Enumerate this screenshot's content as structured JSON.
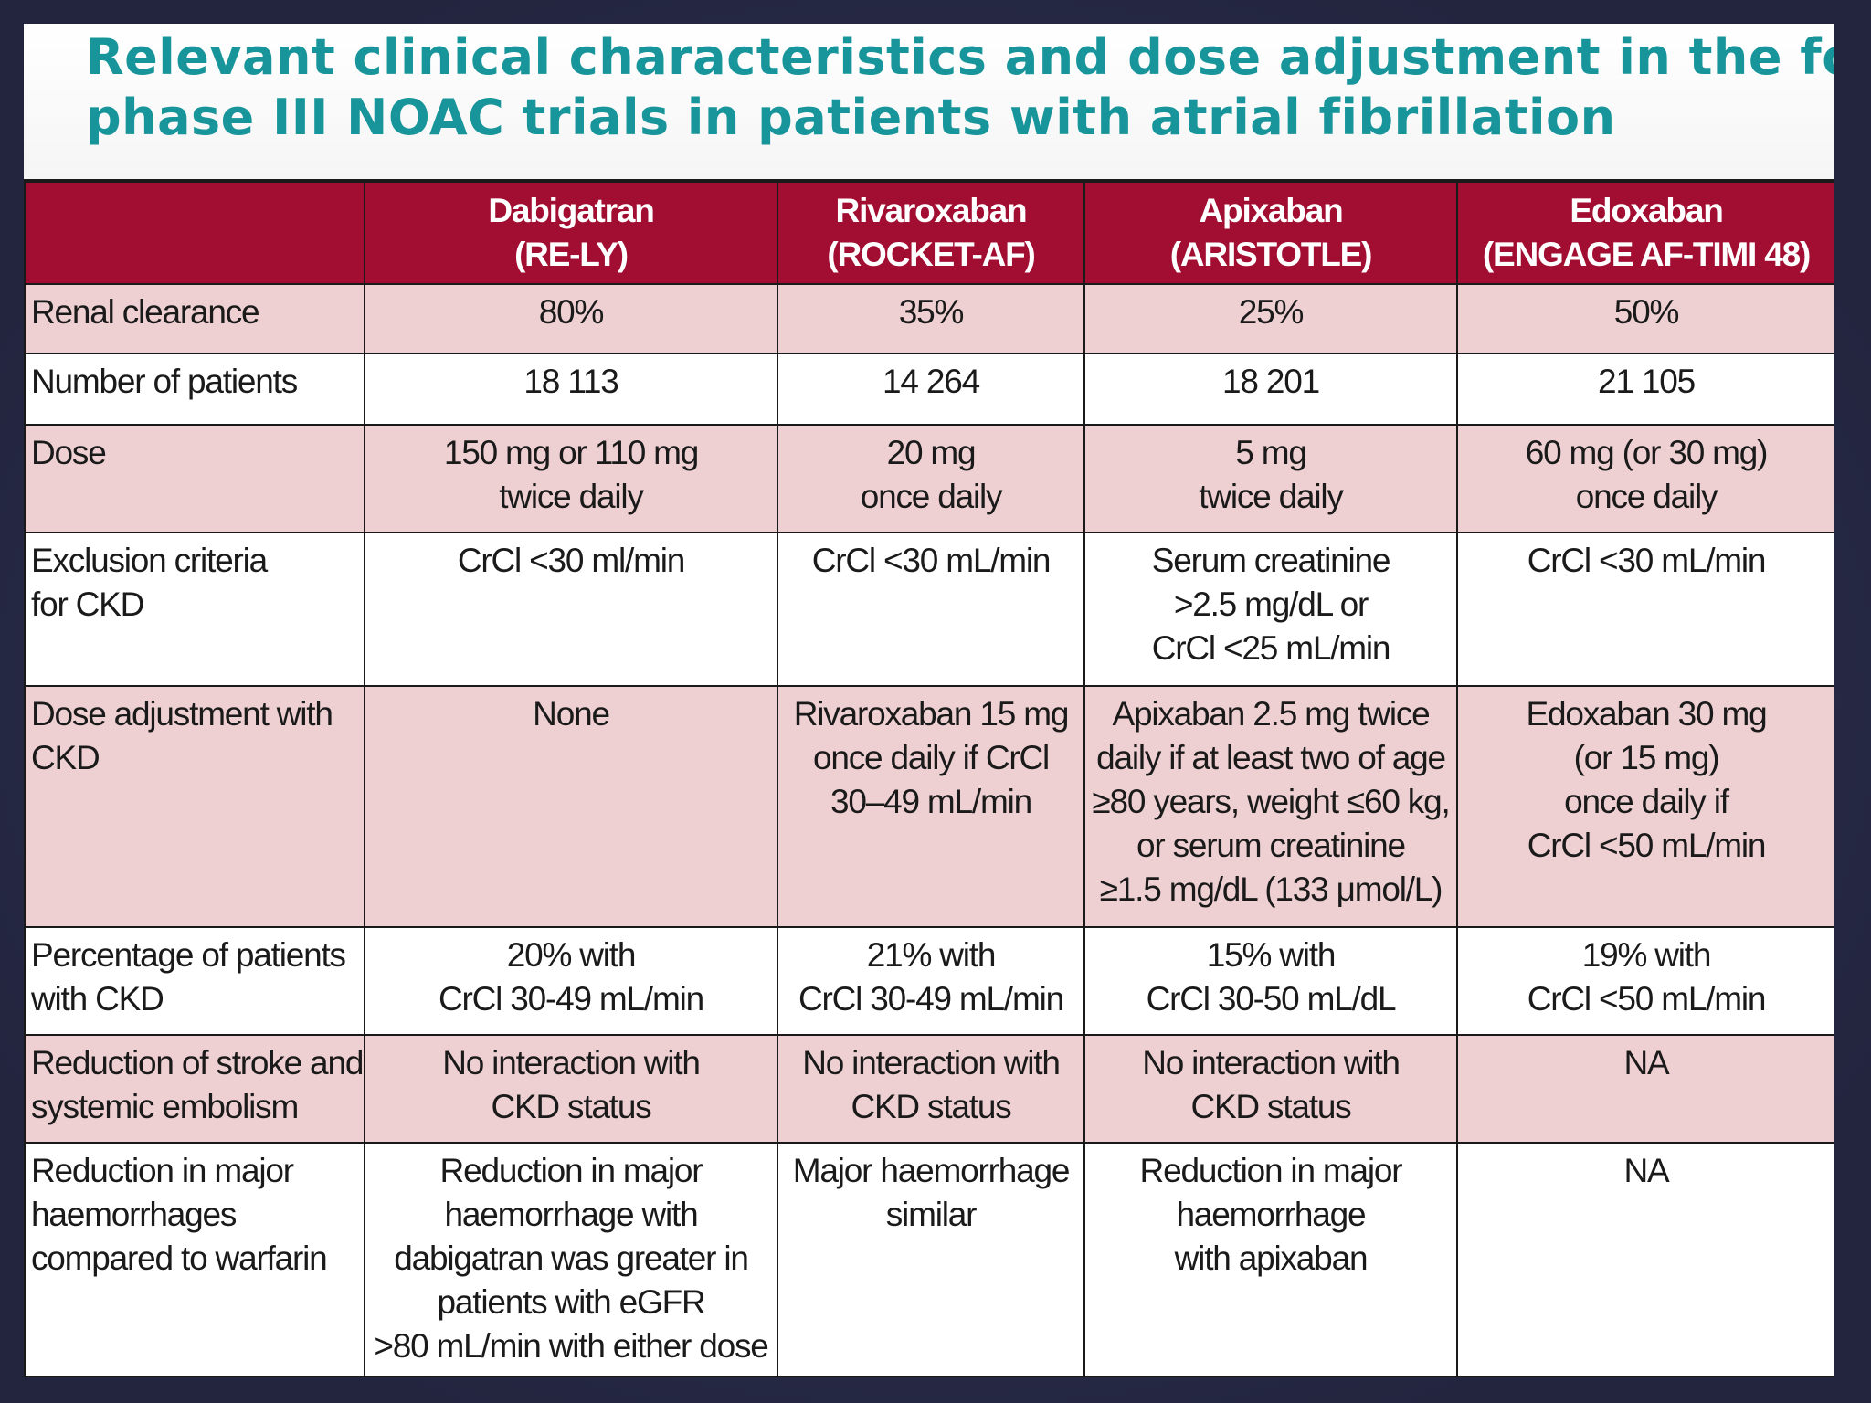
{
  "title": {
    "line1": "Relevant clinical characteristics and dose adjustment in the four",
    "line2": "phase III NOAC trials in patients with atrial fibrillation"
  },
  "table": {
    "columns": [
      {
        "drug": "Dabigatran",
        "trial": "(RE-LY)"
      },
      {
        "drug": "Rivaroxaban",
        "trial": "(ROCKET-AF)"
      },
      {
        "drug": "Apixaban",
        "trial": "(ARISTOTLE)"
      },
      {
        "drug": "Edoxaban",
        "trial": "(ENGAGE AF-TIMI 48)"
      }
    ],
    "rows": [
      {
        "label": [
          "Renal clearance"
        ],
        "cells": [
          [
            "80%"
          ],
          [
            "35%"
          ],
          [
            "25%"
          ],
          [
            "50%"
          ]
        ]
      },
      {
        "label": [
          "Number of patients"
        ],
        "cells": [
          [
            "18 113"
          ],
          [
            "14 264"
          ],
          [
            "18 201"
          ],
          [
            "21 105"
          ]
        ]
      },
      {
        "label": [
          "Dose"
        ],
        "cells": [
          [
            "150 mg or 110 mg",
            "twice daily"
          ],
          [
            "20 mg",
            "once daily"
          ],
          [
            "5 mg",
            "twice daily"
          ],
          [
            "60 mg (or 30 mg)",
            "once daily"
          ]
        ]
      },
      {
        "label": [
          "Exclusion criteria",
          "for CKD"
        ],
        "cells": [
          [
            "CrCl <30 ml/min"
          ],
          [
            "CrCl <30 mL/min"
          ],
          [
            "Serum creatinine",
            ">2.5 mg/dL or",
            "CrCl <25 mL/min"
          ],
          [
            "CrCl <30 mL/min"
          ]
        ]
      },
      {
        "label": [
          "Dose adjustment with",
          "CKD"
        ],
        "cells": [
          [
            "None"
          ],
          [
            "Rivaroxaban 15 mg",
            "once daily if CrCl",
            "30–49 mL/min"
          ],
          [
            "Apixaban 2.5 mg twice",
            "daily if at least two of age",
            "≥80 years, weight ≤60 kg,",
            "or serum creatinine",
            "≥1.5 mg/dL (133 μmol/L)"
          ],
          [
            "Edoxaban 30 mg",
            "(or 15 mg)",
            "once daily if",
            "CrCl <50 mL/min"
          ]
        ]
      },
      {
        "label": [
          "Percentage of patients",
          "with CKD"
        ],
        "cells": [
          [
            "20% with",
            "CrCl 30-49 mL/min"
          ],
          [
            "21% with",
            "CrCl 30-49 mL/min"
          ],
          [
            "15% with",
            "CrCl 30-50 mL/dL"
          ],
          [
            "19% with",
            "CrCl <50 mL/min"
          ]
        ]
      },
      {
        "label": [
          "Reduction of stroke and",
          "systemic embolism"
        ],
        "cells": [
          [
            "No interaction with",
            "CKD status"
          ],
          [
            "No interaction with",
            "CKD status"
          ],
          [
            "No interaction with",
            "CKD status"
          ],
          [
            "NA"
          ]
        ]
      },
      {
        "label": [
          "Reduction in major",
          "haemorrhages",
          "compared to warfarin"
        ],
        "cells": [
          [
            "Reduction in major",
            "haemorrhage with",
            "dabigatran was greater in",
            "patients with eGFR",
            ">80 mL/min with either dose"
          ],
          [
            "Major haemorrhage",
            "similar"
          ],
          [
            "Reduction in major",
            "haemorrhage",
            "with apixaban"
          ],
          [
            "NA"
          ]
        ]
      }
    ]
  }
}
